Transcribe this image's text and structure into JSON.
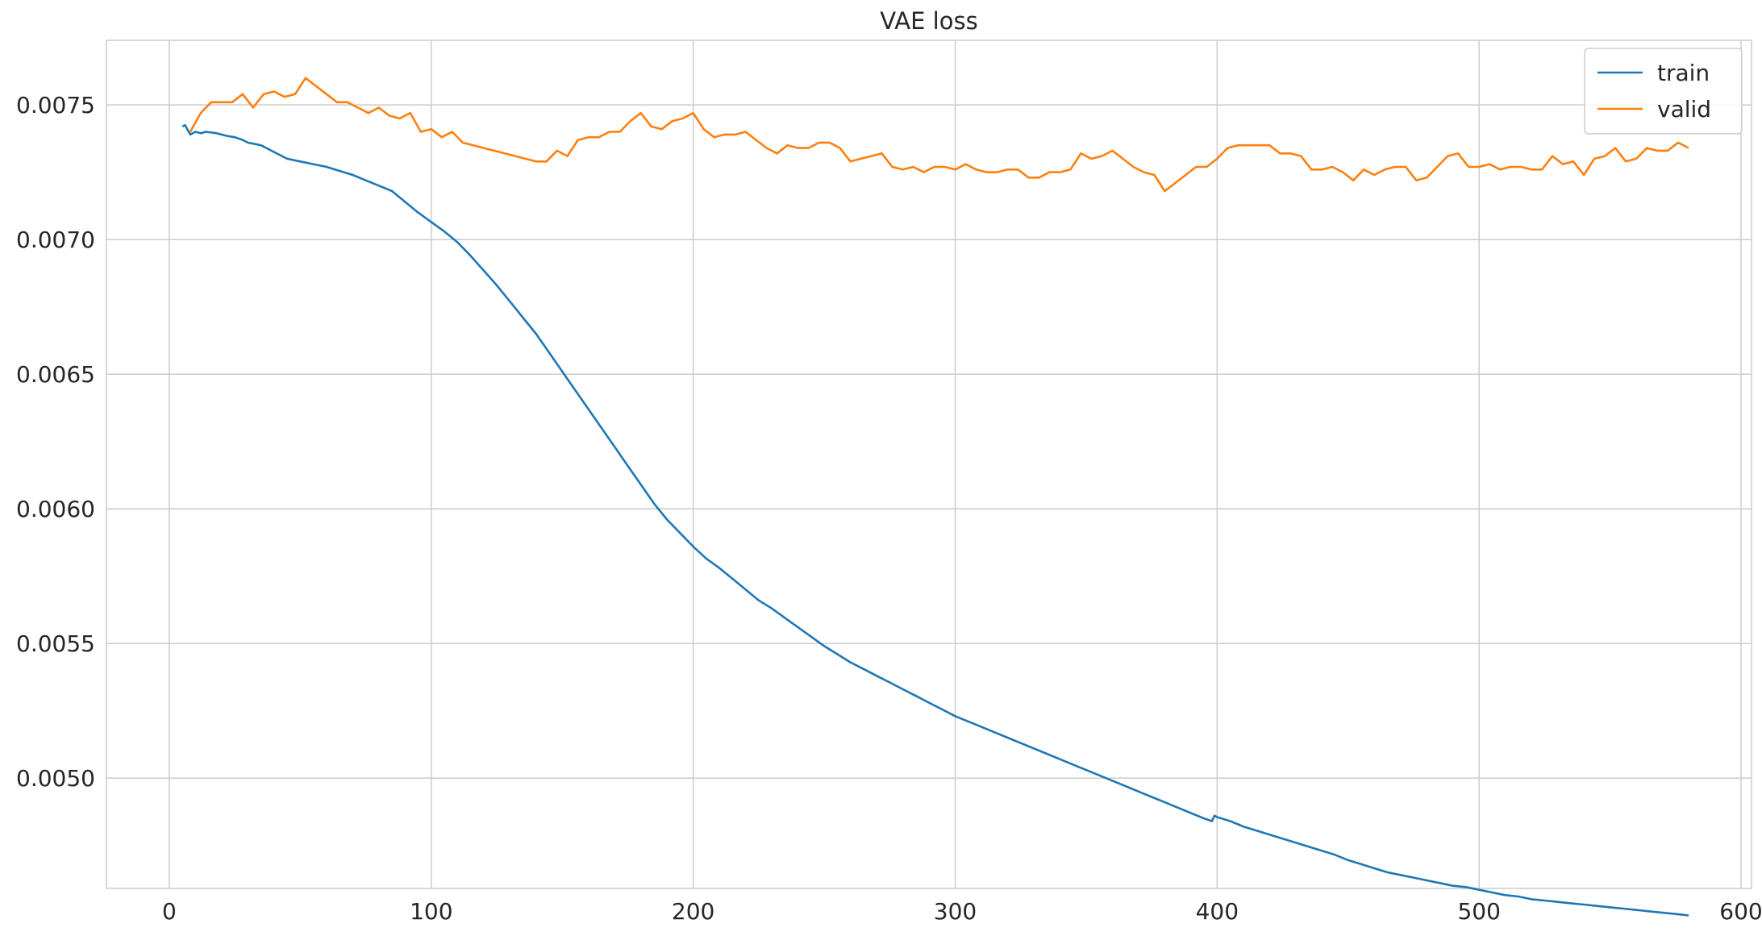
{
  "chart_data": {
    "type": "line",
    "title": "VAE loss",
    "xlabel": "",
    "ylabel": "",
    "xlim": [
      -24,
      604
    ],
    "ylim": [
      0.00459,
      0.00774
    ],
    "x_ticks": [
      0,
      100,
      200,
      300,
      400,
      500,
      600
    ],
    "y_ticks": [
      0.005,
      0.0055,
      0.006,
      0.0065,
      0.007,
      0.0075
    ],
    "y_tick_labels": [
      "0.0050",
      "0.0055",
      "0.0060",
      "0.0065",
      "0.0070",
      "0.0075"
    ],
    "grid": true,
    "legend_position": "top-right",
    "series": [
      {
        "name": "train",
        "color": "#1f77b4",
        "points": [
          [
            5,
            0.00742
          ],
          [
            6,
            0.007425
          ],
          [
            8,
            0.00739
          ],
          [
            10,
            0.0074
          ],
          [
            12,
            0.007395
          ],
          [
            14,
            0.0074
          ],
          [
            18,
            0.007395
          ],
          [
            22,
            0.007385
          ],
          [
            25,
            0.00738
          ],
          [
            28,
            0.00737
          ],
          [
            30,
            0.00736
          ],
          [
            35,
            0.00735
          ],
          [
            40,
            0.007325
          ],
          [
            45,
            0.0073
          ],
          [
            50,
            0.00729
          ],
          [
            55,
            0.00728
          ],
          [
            60,
            0.00727
          ],
          [
            65,
            0.007255
          ],
          [
            70,
            0.00724
          ],
          [
            75,
            0.00722
          ],
          [
            80,
            0.0072
          ],
          [
            85,
            0.00718
          ],
          [
            90,
            0.00714
          ],
          [
            95,
            0.0071
          ],
          [
            100,
            0.007065
          ],
          [
            105,
            0.00703
          ],
          [
            110,
            0.00699
          ],
          [
            115,
            0.00694
          ],
          [
            120,
            0.006885
          ],
          [
            125,
            0.00683
          ],
          [
            130,
            0.00677
          ],
          [
            135,
            0.00671
          ],
          [
            140,
            0.00665
          ],
          [
            145,
            0.00658
          ],
          [
            150,
            0.00651
          ],
          [
            155,
            0.00644
          ],
          [
            160,
            0.00637
          ],
          [
            165,
            0.0063
          ],
          [
            170,
            0.00623
          ],
          [
            175,
            0.00616
          ],
          [
            180,
            0.00609
          ],
          [
            185,
            0.00602
          ],
          [
            190,
            0.00596
          ],
          [
            195,
            0.00591
          ],
          [
            200,
            0.00586
          ],
          [
            205,
            0.005815
          ],
          [
            210,
            0.00578
          ],
          [
            215,
            0.00574
          ],
          [
            220,
            0.0057
          ],
          [
            225,
            0.00566
          ],
          [
            230,
            0.00563
          ],
          [
            235,
            0.005595
          ],
          [
            240,
            0.00556
          ],
          [
            245,
            0.005525
          ],
          [
            250,
            0.00549
          ],
          [
            255,
            0.00546
          ],
          [
            260,
            0.00543
          ],
          [
            265,
            0.005405
          ],
          [
            270,
            0.00538
          ],
          [
            275,
            0.005355
          ],
          [
            280,
            0.00533
          ],
          [
            285,
            0.005305
          ],
          [
            290,
            0.00528
          ],
          [
            295,
            0.005255
          ],
          [
            300,
            0.00523
          ],
          [
            305,
            0.00521
          ],
          [
            310,
            0.00519
          ],
          [
            315,
            0.00517
          ],
          [
            320,
            0.00515
          ],
          [
            325,
            0.00513
          ],
          [
            330,
            0.00511
          ],
          [
            335,
            0.00509
          ],
          [
            340,
            0.00507
          ],
          [
            345,
            0.00505
          ],
          [
            350,
            0.00503
          ],
          [
            355,
            0.00501
          ],
          [
            360,
            0.00499
          ],
          [
            365,
            0.00497
          ],
          [
            370,
            0.00495
          ],
          [
            375,
            0.00493
          ],
          [
            380,
            0.00491
          ],
          [
            385,
            0.00489
          ],
          [
            390,
            0.00487
          ],
          [
            395,
            0.00485
          ],
          [
            398,
            0.00484
          ],
          [
            399,
            0.00486
          ],
          [
            400,
            0.004855
          ],
          [
            405,
            0.00484
          ],
          [
            410,
            0.00482
          ],
          [
            415,
            0.004805
          ],
          [
            420,
            0.00479
          ],
          [
            425,
            0.004775
          ],
          [
            430,
            0.00476
          ],
          [
            435,
            0.004745
          ],
          [
            440,
            0.00473
          ],
          [
            445,
            0.004715
          ],
          [
            450,
            0.004695
          ],
          [
            455,
            0.00468
          ],
          [
            460,
            0.004665
          ],
          [
            465,
            0.00465
          ],
          [
            470,
            0.00464
          ],
          [
            475,
            0.00463
          ],
          [
            480,
            0.00462
          ],
          [
            485,
            0.00461
          ],
          [
            490,
            0.0046
          ],
          [
            495,
            0.004595
          ],
          [
            500,
            0.004585
          ],
          [
            505,
            0.004575
          ],
          [
            510,
            0.004565
          ],
          [
            515,
            0.00456
          ],
          [
            520,
            0.00455
          ],
          [
            525,
            0.004545
          ],
          [
            530,
            0.00454
          ],
          [
            535,
            0.004535
          ],
          [
            540,
            0.00453
          ],
          [
            545,
            0.004525
          ],
          [
            550,
            0.00452
          ],
          [
            555,
            0.004515
          ],
          [
            560,
            0.00451
          ],
          [
            565,
            0.004505
          ],
          [
            570,
            0.0045
          ],
          [
            575,
            0.004495
          ],
          [
            580,
            0.00449
          ]
        ]
      },
      {
        "name": "valid",
        "color": "#ff7f0e",
        "points": [
          [
            8,
            0.0074
          ],
          [
            12,
            0.00747
          ],
          [
            16,
            0.00751
          ],
          [
            20,
            0.00751
          ],
          [
            24,
            0.00751
          ],
          [
            28,
            0.00754
          ],
          [
            32,
            0.00749
          ],
          [
            36,
            0.00754
          ],
          [
            40,
            0.00755
          ],
          [
            44,
            0.00753
          ],
          [
            48,
            0.00754
          ],
          [
            52,
            0.0076
          ],
          [
            56,
            0.00757
          ],
          [
            60,
            0.00754
          ],
          [
            64,
            0.00751
          ],
          [
            68,
            0.00751
          ],
          [
            72,
            0.00749
          ],
          [
            76,
            0.00747
          ],
          [
            80,
            0.00749
          ],
          [
            84,
            0.00746
          ],
          [
            88,
            0.00745
          ],
          [
            92,
            0.00747
          ],
          [
            96,
            0.0074
          ],
          [
            100,
            0.00741
          ],
          [
            104,
            0.00738
          ],
          [
            108,
            0.0074
          ],
          [
            112,
            0.00736
          ],
          [
            116,
            0.00735
          ],
          [
            120,
            0.00734
          ],
          [
            124,
            0.00733
          ],
          [
            128,
            0.00732
          ],
          [
            132,
            0.00731
          ],
          [
            136,
            0.0073
          ],
          [
            140,
            0.00729
          ],
          [
            144,
            0.00729
          ],
          [
            148,
            0.00733
          ],
          [
            152,
            0.00731
          ],
          [
            156,
            0.00737
          ],
          [
            160,
            0.00738
          ],
          [
            164,
            0.00738
          ],
          [
            168,
            0.0074
          ],
          [
            172,
            0.0074
          ],
          [
            176,
            0.00744
          ],
          [
            180,
            0.00747
          ],
          [
            184,
            0.00742
          ],
          [
            188,
            0.00741
          ],
          [
            192,
            0.00744
          ],
          [
            196,
            0.00745
          ],
          [
            200,
            0.00747
          ],
          [
            204,
            0.00741
          ],
          [
            208,
            0.00738
          ],
          [
            212,
            0.00739
          ],
          [
            216,
            0.00739
          ],
          [
            220,
            0.0074
          ],
          [
            224,
            0.00737
          ],
          [
            228,
            0.00734
          ],
          [
            232,
            0.00732
          ],
          [
            236,
            0.00735
          ],
          [
            240,
            0.00734
          ],
          [
            244,
            0.00734
          ],
          [
            248,
            0.00736
          ],
          [
            252,
            0.00736
          ],
          [
            256,
            0.00734
          ],
          [
            260,
            0.00729
          ],
          [
            264,
            0.0073
          ],
          [
            268,
            0.00731
          ],
          [
            272,
            0.00732
          ],
          [
            276,
            0.00727
          ],
          [
            280,
            0.00726
          ],
          [
            284,
            0.00727
          ],
          [
            288,
            0.00725
          ],
          [
            292,
            0.00727
          ],
          [
            296,
            0.00727
          ],
          [
            300,
            0.00726
          ],
          [
            304,
            0.00728
          ],
          [
            308,
            0.00726
          ],
          [
            312,
            0.00725
          ],
          [
            316,
            0.00725
          ],
          [
            320,
            0.00726
          ],
          [
            324,
            0.00726
          ],
          [
            328,
            0.00723
          ],
          [
            332,
            0.00723
          ],
          [
            336,
            0.00725
          ],
          [
            340,
            0.00725
          ],
          [
            344,
            0.00726
          ],
          [
            348,
            0.00732
          ],
          [
            352,
            0.0073
          ],
          [
            356,
            0.00731
          ],
          [
            360,
            0.00733
          ],
          [
            364,
            0.0073
          ],
          [
            368,
            0.00727
          ],
          [
            372,
            0.00725
          ],
          [
            376,
            0.00724
          ],
          [
            380,
            0.00718
          ],
          [
            384,
            0.00721
          ],
          [
            388,
            0.00724
          ],
          [
            392,
            0.00727
          ],
          [
            396,
            0.00727
          ],
          [
            400,
            0.0073
          ],
          [
            404,
            0.00734
          ],
          [
            408,
            0.00735
          ],
          [
            412,
            0.00735
          ],
          [
            416,
            0.00735
          ],
          [
            420,
            0.00735
          ],
          [
            424,
            0.00732
          ],
          [
            428,
            0.00732
          ],
          [
            432,
            0.00731
          ],
          [
            436,
            0.00726
          ],
          [
            440,
            0.00726
          ],
          [
            444,
            0.00727
          ],
          [
            448,
            0.00725
          ],
          [
            452,
            0.00722
          ],
          [
            456,
            0.00726
          ],
          [
            460,
            0.00724
          ],
          [
            464,
            0.00726
          ],
          [
            468,
            0.00727
          ],
          [
            472,
            0.00727
          ],
          [
            476,
            0.00722
          ],
          [
            480,
            0.00723
          ],
          [
            484,
            0.00727
          ],
          [
            488,
            0.00731
          ],
          [
            492,
            0.00732
          ],
          [
            496,
            0.00727
          ],
          [
            500,
            0.00727
          ],
          [
            504,
            0.00728
          ],
          [
            508,
            0.00726
          ],
          [
            512,
            0.00727
          ],
          [
            516,
            0.00727
          ],
          [
            520,
            0.00726
          ],
          [
            524,
            0.00726
          ],
          [
            528,
            0.00731
          ],
          [
            532,
            0.00728
          ],
          [
            536,
            0.00729
          ],
          [
            540,
            0.00724
          ],
          [
            544,
            0.0073
          ],
          [
            548,
            0.00731
          ],
          [
            552,
            0.00734
          ],
          [
            556,
            0.00729
          ],
          [
            560,
            0.0073
          ],
          [
            564,
            0.00734
          ],
          [
            568,
            0.00733
          ],
          [
            572,
            0.00733
          ],
          [
            576,
            0.00736
          ],
          [
            580,
            0.00734
          ]
        ]
      }
    ]
  }
}
